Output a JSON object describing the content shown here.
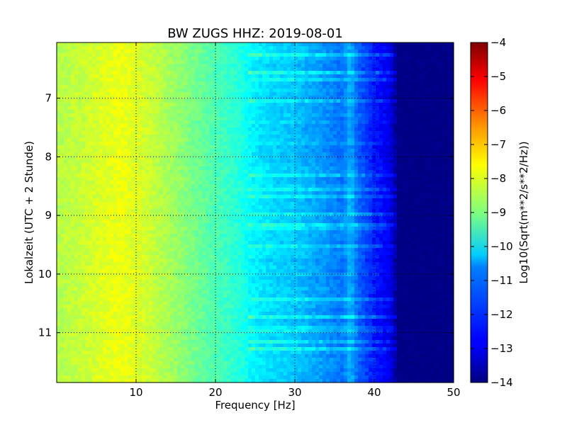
{
  "chart_data": {
    "type": "heatmap",
    "title": "BW ZUGS HHZ: 2019-08-01",
    "xlabel": "Frequency [Hz]",
    "ylabel": "Lokalzeit (UTC + 2 Stunde)",
    "xlim": [
      0,
      50
    ],
    "ylim": [
      6.05,
      11.85
    ],
    "y_inverted": true,
    "x_ticks": [
      10,
      20,
      30,
      40,
      50
    ],
    "x_tick_labels": [
      "10",
      "20",
      "30",
      "40",
      "50"
    ],
    "y_ticks": [
      7,
      8,
      9,
      10,
      11
    ],
    "y_tick_labels": [
      "7",
      "8",
      "9",
      "10",
      "11"
    ],
    "grid": true,
    "colormap": "jet",
    "colorbar": {
      "label": "Log10(Sqrt(m**2/s**2/Hz))",
      "range": [
        -14,
        -4
      ],
      "ticks": [
        -14,
        -13,
        -12,
        -11,
        -10,
        -9,
        -8,
        -7,
        -6,
        -5,
        -4
      ],
      "tick_labels": [
        "−14",
        "−13",
        "−12",
        "−11",
        "−10",
        "−9",
        "−8",
        "−7",
        "−6",
        "−5",
        "−4"
      ]
    },
    "spectral_profile": {
      "frequency_hz": [
        0,
        3,
        8,
        12,
        16,
        20,
        23,
        25,
        28,
        30,
        33,
        36,
        37,
        38,
        40,
        42,
        43,
        50
      ],
      "log10_psd": [
        -8.5,
        -8.3,
        -7.9,
        -8.3,
        -8.9,
        -9.5,
        -9.9,
        -10.4,
        -10.7,
        -10.8,
        -11.2,
        -11.6,
        -11.0,
        -11.8,
        -12.5,
        -13.0,
        -14.0,
        -14.0
      ]
    }
  }
}
